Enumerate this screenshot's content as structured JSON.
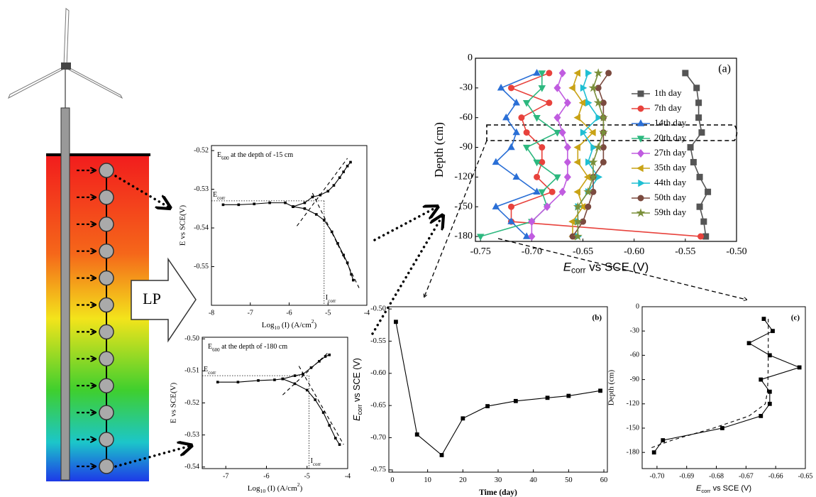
{
  "illustration": {
    "label": "LP"
  },
  "chart_data": [
    {
      "type": "line",
      "title": [
        "E",
        "600",
        " at the depth of -15 cm"
      ],
      "xlabel": [
        "Log",
        "10",
        " (I) (A/cm",
        "2",
        ")"
      ],
      "ylabel": "E vs SCE(V)",
      "ecorr_label": [
        "E",
        "corr"
      ],
      "icorr_label": [
        "I",
        "corr"
      ],
      "ecorr": -0.533,
      "icorr": -5.1,
      "xlim": [
        -8,
        -4
      ],
      "ylim": [
        -0.56,
        -0.5187
      ],
      "xticks": [
        -8,
        -7,
        -6,
        -5,
        -4
      ],
      "yticks": [
        -0.52,
        -0.53,
        -0.54,
        -0.55
      ],
      "series": [
        {
          "color": "#000000",
          "marker": "dot",
          "x": [
            -7.7,
            -7.3,
            -6.9,
            -6.5,
            -6.1,
            -5.9
          ],
          "values": [
            -0.534,
            -0.534,
            -0.5338,
            -0.5335,
            -0.5335,
            -0.5345
          ]
        },
        {
          "color": "#000000",
          "marker": "dot",
          "x": [
            -5.9,
            -5.6,
            -5.4,
            -5.2,
            -5.0,
            -4.85,
            -4.7,
            -4.6,
            -4.5,
            -4.42
          ],
          "values": [
            -0.5345,
            -0.5335,
            -0.532,
            -0.5315,
            -0.5305,
            -0.529,
            -0.527,
            -0.5255,
            -0.524,
            -0.523
          ]
        },
        {
          "color": "#000000",
          "marker": "dot",
          "x": [
            -5.9,
            -5.6,
            -5.3,
            -5.1,
            -4.9,
            -4.75,
            -4.6,
            -4.5,
            -4.4,
            -4.35
          ],
          "values": [
            -0.5345,
            -0.535,
            -0.5365,
            -0.538,
            -0.541,
            -0.544,
            -0.547,
            -0.549,
            -0.552,
            -0.5535
          ]
        },
        {
          "color": "#000000",
          "dashed": true,
          "x": [
            -5.8,
            -4.5
          ],
          "values": [
            -0.5395,
            -0.522
          ]
        },
        {
          "color": "#000000",
          "dashed": true,
          "x": [
            -5.4,
            -4.2
          ],
          "values": [
            -0.531,
            -0.5555
          ]
        }
      ]
    },
    {
      "type": "line",
      "title": [
        "E",
        "600",
        " at the depth of -180 cm"
      ],
      "xlabel": [
        "Log",
        "10",
        " (I) (A/cm",
        "2",
        ")"
      ],
      "ylabel": "E vs SCE(V)",
      "ecorr_label": [
        "E",
        "corr"
      ],
      "icorr_label": [
        "I",
        "corr"
      ],
      "ecorr": -0.5115,
      "icorr": -4.95,
      "xlim": [
        -7.58,
        -4
      ],
      "ylim": [
        -0.5405,
        -0.4995
      ],
      "xticks": [
        -7,
        -6,
        -5,
        -4
      ],
      "yticks": [
        {
          "value": -0.5,
          "label": "-0.50"
        },
        -0.51,
        -0.52,
        -0.53,
        -0.54
      ],
      "series": [
        {
          "color": "#000000",
          "marker": "dot",
          "x": [
            -7.2,
            -6.7,
            -6.2,
            -5.8,
            -5.6
          ],
          "values": [
            -0.5135,
            -0.5135,
            -0.513,
            -0.5128,
            -0.5125
          ]
        },
        {
          "color": "#000000",
          "marker": "dot",
          "x": [
            -5.6,
            -5.3,
            -5.1,
            -4.9,
            -4.7,
            -4.55,
            -4.45
          ],
          "values": [
            -0.5125,
            -0.5115,
            -0.511,
            -0.509,
            -0.507,
            -0.5055,
            -0.505
          ]
        },
        {
          "color": "#000000",
          "marker": "dot",
          "x": [
            -5.6,
            -5.3,
            -5.0,
            -4.8,
            -4.6,
            -4.45,
            -4.3,
            -4.2
          ],
          "values": [
            -0.5125,
            -0.514,
            -0.516,
            -0.519,
            -0.523,
            -0.527,
            -0.531,
            -0.533
          ]
        },
        {
          "color": "#000000",
          "dashed": true,
          "x": [
            -5.6,
            -4.5
          ],
          "values": [
            -0.5175,
            -0.5045
          ]
        },
        {
          "color": "#000000",
          "dashed": true,
          "x": [
            -5.2,
            -4.1
          ],
          "values": [
            -0.5085,
            -0.533
          ]
        }
      ]
    },
    {
      "type": "line",
      "panel": "(a)",
      "xlabel": [
        "E",
        "corr",
        " vs SCE (V)"
      ],
      "ylabel": "Depth (cm)",
      "xlim": [
        -0.755,
        -0.5
      ],
      "ylim": [
        -185,
        0
      ],
      "xticks": [
        -0.75,
        {
          "value": -0.7,
          "label": "-0.70"
        },
        -0.65,
        {
          "value": -0.6,
          "label": "-0.60"
        },
        -0.55,
        {
          "value": -0.5,
          "label": "-0.50"
        }
      ],
      "yticks": [
        0,
        -30,
        -60,
        -90,
        -120,
        -150,
        -180
      ],
      "legend": "upper right",
      "y": [
        -15,
        -30,
        -45,
        -60,
        -75,
        -90,
        -105,
        -120,
        -135,
        -150,
        -165,
        -180
      ],
      "series": [
        {
          "name": "1th day",
          "color": "#555555",
          "marker": "square",
          "values": [
            -0.55,
            -0.539,
            -0.537,
            -0.537,
            -0.534,
            -0.545,
            -0.542,
            -0.536,
            -0.528,
            -0.536,
            -0.532,
            -0.53
          ]
        },
        {
          "name": "7th day",
          "color": "#e8423c",
          "marker": "circle",
          "values": [
            -0.683,
            -0.72,
            -0.683,
            -0.71,
            -0.705,
            -0.69,
            -0.69,
            -0.695,
            -0.68,
            -0.72,
            -0.72,
            -0.535
          ]
        },
        {
          "name": "14th day",
          "color": "#2a6fd6",
          "marker": "triangle-up",
          "values": [
            -0.695,
            -0.73,
            -0.715,
            -0.725,
            -0.715,
            -0.72,
            -0.735,
            -0.715,
            -0.695,
            -0.735,
            -0.72,
            -0.705
          ]
        },
        {
          "name": "20th day",
          "color": "#2db87f",
          "marker": "triangle-down",
          "values": [
            -0.69,
            -0.69,
            -0.705,
            -0.695,
            -0.675,
            -0.705,
            -0.695,
            -0.675,
            -0.69,
            -0.685,
            -0.7,
            -0.75
          ]
        },
        {
          "name": "27th day",
          "color": "#c05ce0",
          "marker": "diamond",
          "values": [
            -0.67,
            -0.675,
            -0.665,
            -0.675,
            -0.67,
            -0.665,
            -0.665,
            -0.665,
            -0.67,
            -0.685,
            -0.7,
            -0.7
          ]
        },
        {
          "name": "35th day",
          "color": "#c9a316",
          "marker": "triangle-left",
          "values": [
            -0.655,
            -0.66,
            -0.65,
            -0.655,
            -0.64,
            -0.655,
            -0.655,
            -0.645,
            -0.655,
            -0.65,
            -0.66,
            -0.66
          ]
        },
        {
          "name": "44th day",
          "color": "#1fbfd3",
          "marker": "triangle-right",
          "values": [
            -0.645,
            -0.65,
            -0.645,
            -0.635,
            -0.65,
            -0.64,
            -0.645,
            -0.635,
            -0.645,
            -0.655,
            -0.655,
            -0.655
          ]
        },
        {
          "name": "50th day",
          "color": "#7b4a3f",
          "marker": "circle",
          "values": [
            -0.625,
            -0.635,
            -0.63,
            -0.63,
            -0.63,
            -0.63,
            -0.63,
            -0.64,
            -0.64,
            -0.645,
            -0.65,
            -0.66
          ]
        },
        {
          "name": "59th day",
          "color": "#7a8f3a",
          "marker": "star",
          "values": [
            -0.635,
            -0.64,
            -0.635,
            -0.63,
            -0.63,
            -0.635,
            -0.64,
            -0.64,
            -0.645,
            -0.655,
            -0.655,
            -0.655
          ]
        }
      ]
    },
    {
      "type": "line",
      "panel": "(b)",
      "xlabel": "Time (day)",
      "ylabel": [
        "E",
        "corr",
        " vs SCE (V)"
      ],
      "xlim": [
        -1,
        61
      ],
      "ylim": [
        -0.7535,
        -0.4965
      ],
      "xticks": [
        0,
        10,
        20,
        30,
        40,
        50,
        60
      ],
      "yticks": [
        {
          "value": -0.5,
          "label": "-0.50"
        },
        -0.55,
        {
          "value": -0.6,
          "label": "-0.60"
        },
        -0.65,
        {
          "value": -0.7,
          "label": "-0.70"
        },
        -0.75
      ],
      "x": [
        1,
        7,
        14,
        20,
        27,
        35,
        44,
        50,
        59
      ],
      "series": [
        {
          "color": "#000000",
          "marker": "square",
          "values": [
            -0.52,
            -0.695,
            -0.727,
            -0.67,
            -0.651,
            -0.643,
            -0.638,
            -0.635,
            -0.627
          ]
        }
      ]
    },
    {
      "type": "line",
      "panel": "(c)",
      "xlabel": [
        "E",
        "corr",
        " vs SCE (V)"
      ],
      "ylabel": "Depth (cm)",
      "xlim": [
        -0.705,
        -0.65
      ],
      "ylim": [
        -200,
        0
      ],
      "xticks": [
        {
          "value": -0.7,
          "label": "-0.70"
        },
        -0.69,
        -0.68,
        -0.67,
        -0.66,
        -0.65
      ],
      "yticks": [
        0,
        -30,
        -60,
        -90,
        -120,
        -150,
        -180
      ],
      "y": [
        -15,
        -30,
        -45,
        -60,
        -75,
        -90,
        -105,
        -120,
        -135,
        -150,
        -165,
        -180
      ],
      "series": [
        {
          "color": "#000000",
          "marker": "square",
          "values": [
            -0.664,
            -0.661,
            -0.669,
            -0.662,
            -0.652,
            -0.665,
            -0.662,
            -0.662,
            -0.665,
            -0.678,
            -0.698,
            -0.701
          ]
        },
        {
          "color": "#000000",
          "dashed": true,
          "y": [
            -15,
            -30,
            -60,
            -90,
            -105,
            -120,
            -135,
            -150,
            -165,
            -175
          ],
          "values": [
            -0.6625,
            -0.6625,
            -0.6625,
            -0.6626,
            -0.6628,
            -0.6635,
            -0.669,
            -0.681,
            -0.695,
            -0.7025
          ]
        }
      ]
    }
  ]
}
